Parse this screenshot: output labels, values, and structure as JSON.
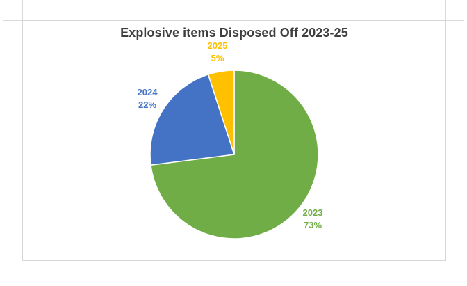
{
  "window": {
    "background": "#FFFFFF"
  },
  "frame": {
    "border_color": "#D6D6D6",
    "gridline_color": "#D9D9D9"
  },
  "chart_data": {
    "type": "pie",
    "title": "Explosive items Disposed Off 2023-25",
    "legend_position": "none",
    "start_angle_deg": 0,
    "direction": "clockwise",
    "unit": "%",
    "categories": [
      "2023",
      "2024",
      "2025"
    ],
    "values": [
      73,
      22,
      5
    ],
    "slice_border_color": "#FFFFFF",
    "slices": [
      {
        "year": "2023",
        "pct": 73,
        "value_label": "73%",
        "color": "#70AD47"
      },
      {
        "year": "2024",
        "pct": 22,
        "value_label": "22%",
        "color": "#4472C4"
      },
      {
        "year": "2025",
        "pct": 5,
        "value_label": "5%",
        "color": "#FFC000"
      }
    ]
  }
}
